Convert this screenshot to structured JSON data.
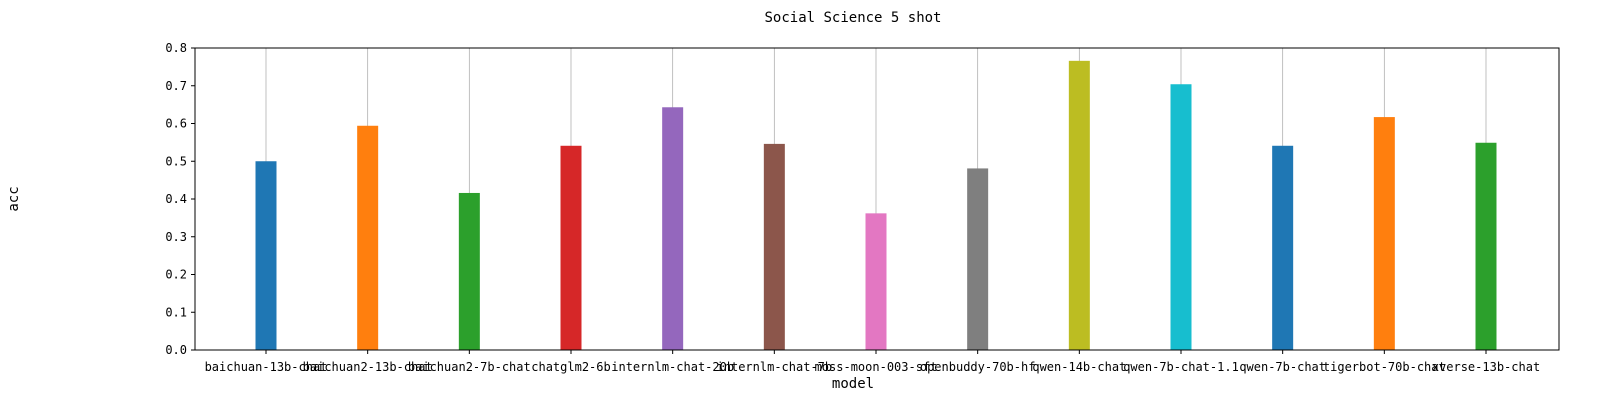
{
  "chart_data": {
    "type": "bar",
    "title": "Social Science 5 shot",
    "xlabel": "model",
    "ylabel": "acc",
    "ylim": [
      0,
      0.8
    ],
    "yticks": [
      "0.0",
      "0.1",
      "0.2",
      "0.3",
      "0.4",
      "0.5",
      "0.6",
      "0.7",
      "0.8"
    ],
    "grid": "vertical",
    "categories": [
      "baichuan-13b-chat",
      "baichuan2-13b-chat",
      "baichuan2-7b-chat",
      "chatglm2-6b",
      "internlm-chat-20b",
      "internlm-chat-7b",
      "moss-moon-003-sft",
      "openbuddy-70b-hf",
      "qwen-14b-chat",
      "qwen-7b-chat-1.1",
      "qwen-7b-chat",
      "tigerbot-70b-chat",
      "xverse-13b-chat"
    ],
    "values": [
      0.5,
      0.594,
      0.416,
      0.541,
      0.643,
      0.546,
      0.362,
      0.481,
      0.766,
      0.704,
      0.541,
      0.617,
      0.549
    ],
    "colors": [
      "#1f77b4",
      "#ff7f0e",
      "#2ca02c",
      "#d62728",
      "#9467bd",
      "#8c564b",
      "#e377c2",
      "#7f7f7f",
      "#bcbd22",
      "#17becf",
      "#1f77b4",
      "#ff7f0e",
      "#2ca02c"
    ]
  }
}
